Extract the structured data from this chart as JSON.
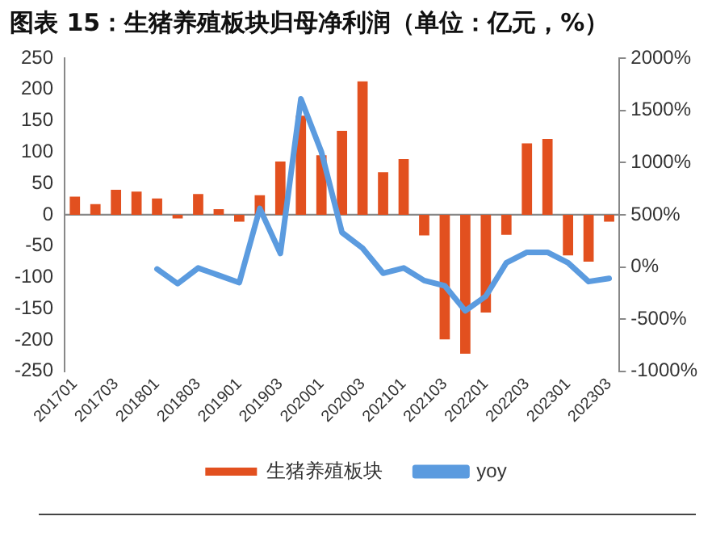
{
  "chart_data": {
    "type": "bar",
    "title": "图表 15：生猪养殖板块归母净利润（单位：亿元，%）",
    "categories": [
      "201701",
      null,
      "201703",
      null,
      "201801",
      null,
      "201803",
      null,
      "201901",
      null,
      "201903",
      null,
      "202001",
      null,
      "202003",
      null,
      "202101",
      null,
      "202103",
      null,
      "202201",
      null,
      "202203",
      null,
      "202301",
      null,
      "202303"
    ],
    "series": [
      {
        "name": "生猪养殖板块",
        "color": "#e2501f",
        "values": [
          29,
          17,
          40,
          37,
          26,
          -6,
          33,
          9,
          -11,
          31,
          85,
          158,
          95,
          134,
          213,
          68,
          89,
          -33,
          -199,
          -222,
          -156,
          -32,
          114,
          121,
          -65,
          -75,
          -11
        ]
      },
      {
        "name": "yoy",
        "type": "line",
        "axis": "y2",
        "color": "#5b9bdf",
        "values": [
          null,
          null,
          null,
          null,
          -20,
          -160,
          -10,
          -80,
          -150,
          560,
          130,
          1610,
          1100,
          330,
          180,
          -60,
          -10,
          -130,
          -180,
          -420,
          -280,
          40,
          140,
          140,
          40,
          -140,
          -110
        ]
      }
    ],
    "ylim": [
      -250,
      250
    ],
    "yticks": [
      -250,
      -200,
      -150,
      -100,
      -50,
      0,
      50,
      100,
      150,
      200,
      250
    ],
    "y2lim": [
      -1000,
      2000
    ],
    "y2ticks": [
      {
        "value": -1000,
        "label": "-1000%"
      },
      {
        "value": -500,
        "label": "-500%"
      },
      {
        "value": 0,
        "label": "0%"
      },
      {
        "value": 500,
        "label": "500%"
      },
      {
        "value": 1000,
        "label": "1000%"
      },
      {
        "value": 1500,
        "label": "1500%"
      },
      {
        "value": 2000,
        "label": "2000%"
      }
    ],
    "ref_lines": [
      {
        "axis": "y",
        "value": 0,
        "color": "#888888"
      }
    ],
    "grid": false,
    "legend": "bottom",
    "marker": "none",
    "line_style": "solid"
  }
}
